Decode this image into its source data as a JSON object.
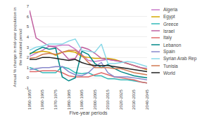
{
  "chart_data": {
    "type": "line",
    "categories": [
      "1950-1955",
      null,
      "1960-1965",
      null,
      "1970-1975",
      null,
      "1980-1985",
      null,
      "1990-1995",
      null,
      "2000-2005",
      null,
      "2010-2015",
      null,
      "2020-2025",
      null,
      "2030-2035",
      null,
      "2040-2045"
    ],
    "series": [
      {
        "name": "Algeria",
        "color": "#c878c8",
        "values": [
          2.1,
          2.4,
          2.7,
          3.1,
          3.1,
          3.2,
          3.2,
          2.8,
          2.3,
          1.7,
          1.6,
          1.7,
          1.8,
          1.7,
          1.6,
          1.4,
          1.2,
          1.0,
          0.8
        ]
      },
      {
        "name": "Egypt",
        "color": "#d4a800",
        "values": [
          2.4,
          2.5,
          2.6,
          2.5,
          2.2,
          2.5,
          2.6,
          2.5,
          2.1,
          2.0,
          1.9,
          1.9,
          1.9,
          1.8,
          1.6,
          1.4,
          1.2,
          1.0,
          0.8
        ]
      },
      {
        "name": "Greece",
        "color": "#30b8b8",
        "values": [
          1.0,
          0.8,
          0.5,
          0.5,
          0.5,
          1.1,
          0.9,
          0.5,
          0.4,
          0.5,
          0.2,
          0.2,
          -0.1,
          -0.1,
          -0.2,
          -0.2,
          -0.3,
          -0.4,
          -0.5
        ]
      },
      {
        "name": "Israel",
        "color": "#c060a0",
        "values": [
          6.6,
          3.9,
          3.5,
          3.1,
          3.0,
          2.5,
          1.8,
          1.9,
          3.0,
          2.8,
          2.4,
          1.9,
          1.8,
          1.7,
          1.6,
          1.4,
          1.2,
          1.0,
          0.9
        ]
      },
      {
        "name": "Italy",
        "color": "#e06868",
        "values": [
          0.6,
          0.6,
          0.7,
          0.7,
          0.7,
          0.5,
          0.2,
          0.1,
          0.1,
          0.1,
          0.3,
          0.5,
          0.3,
          0.1,
          0.0,
          -0.1,
          -0.2,
          -0.4,
          -0.5
        ]
      },
      {
        "name": "Lebanon",
        "color": "#008888",
        "values": [
          2.3,
          2.7,
          3.0,
          2.8,
          2.9,
          0.1,
          -0.3,
          0.0,
          2.6,
          2.3,
          1.4,
          1.0,
          1.3,
          0.9,
          0.6,
          0.4,
          0.2,
          0.1,
          0.0
        ]
      },
      {
        "name": "Spain",
        "color": "#8888cc",
        "values": [
          0.8,
          0.9,
          1.0,
          1.0,
          1.1,
          1.1,
          0.6,
          0.3,
          0.2,
          0.5,
          1.1,
          1.5,
          0.5,
          0.1,
          0.1,
          0.1,
          0.0,
          -0.1,
          -0.2
        ]
      },
      {
        "name": "Syrian Arab Rep",
        "color": "#88d8e8",
        "values": [
          2.7,
          3.0,
          3.1,
          3.3,
          3.3,
          3.3,
          3.6,
          3.8,
          2.7,
          2.6,
          2.5,
          3.3,
          1.4,
          1.4,
          1.5,
          1.6,
          1.5,
          1.3,
          1.1
        ]
      },
      {
        "name": "Tunisia",
        "color": "#d07850",
        "values": [
          1.9,
          2.0,
          2.3,
          2.4,
          2.3,
          2.5,
          2.7,
          2.7,
          2.2,
          1.5,
          1.0,
          1.0,
          1.0,
          0.9,
          0.9,
          0.7,
          0.5,
          0.4,
          0.3
        ]
      },
      {
        "name": "World",
        "color": "#202020",
        "values": [
          1.8,
          1.8,
          2.0,
          2.0,
          1.9,
          1.8,
          1.7,
          1.8,
          1.5,
          1.3,
          1.2,
          1.2,
          1.2,
          1.1,
          1.0,
          0.9,
          0.8,
          0.7,
          0.6
        ]
      }
    ],
    "xlabel": "Five-year periods",
    "ylabel": "Annual % change in mid-year population in\nthe indicated period",
    "ylim": [
      -1,
      7
    ],
    "yticks": [
      -1,
      0,
      1,
      2,
      3,
      4,
      5,
      6,
      7
    ],
    "grid": true,
    "legend": "right"
  }
}
